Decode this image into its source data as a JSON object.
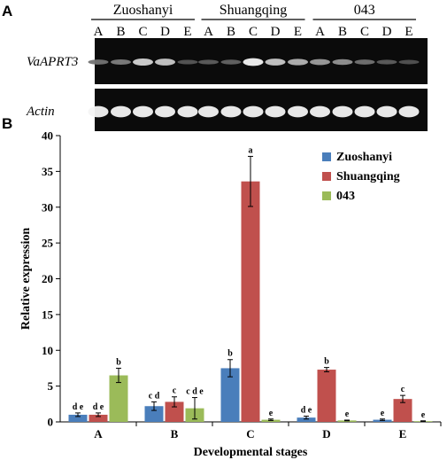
{
  "panel_a": {
    "letter": "A",
    "cultivars": [
      "Zuoshanyi",
      "Shuangqing",
      "043"
    ],
    "lanes": [
      "A",
      "B",
      "C",
      "D",
      "E"
    ],
    "gel_rows": [
      {
        "gene": "VaAPRT3",
        "band_intensity": [
          [
            0.35,
            0.4,
            0.8,
            0.75,
            0.22
          ],
          [
            0.25,
            0.28,
            0.95,
            0.75,
            0.65
          ],
          [
            0.55,
            0.5,
            0.35,
            0.25,
            0.2
          ]
        ]
      },
      {
        "gene": "Actin",
        "band_intensity": [
          [
            0.95,
            0.95,
            0.95,
            0.95,
            0.95
          ],
          [
            0.95,
            0.95,
            0.95,
            0.95,
            0.95
          ],
          [
            0.95,
            0.95,
            0.95,
            0.95,
            0.95
          ]
        ]
      }
    ]
  },
  "panel_b": {
    "letter": "B"
  },
  "chart_data": {
    "type": "bar",
    "categories": [
      "A",
      "B",
      "C",
      "D",
      "E"
    ],
    "xlabel": "Developmental stages",
    "ylabel": "Relative expression",
    "ylim": [
      0,
      40
    ],
    "yticks": [
      0,
      5,
      10,
      15,
      20,
      25,
      30,
      35,
      40
    ],
    "legend_position": "top-right",
    "series": [
      {
        "name": "Zuoshanyi",
        "color": "#4a7ebb",
        "values": [
          1.0,
          2.2,
          7.5,
          0.6,
          0.3
        ],
        "errors": [
          0.25,
          0.6,
          1.2,
          0.2,
          0.1
        ],
        "labels": [
          "d e",
          "c d",
          "b",
          "d e",
          "e"
        ]
      },
      {
        "name": "Shuangqing",
        "color": "#c0504d",
        "values": [
          1.0,
          2.8,
          33.6,
          7.3,
          3.2
        ],
        "errors": [
          0.25,
          0.7,
          3.5,
          0.3,
          0.5
        ],
        "labels": [
          "d e",
          "c",
          "a",
          "b",
          "c"
        ]
      },
      {
        "name": "043",
        "color": "#9bbb59",
        "values": [
          6.5,
          1.9,
          0.3,
          0.2,
          0.1
        ],
        "errors": [
          1.0,
          1.5,
          0.1,
          0.05,
          0.05
        ],
        "labels": [
          "b",
          "c d e",
          "e",
          "e",
          "e"
        ]
      }
    ]
  }
}
